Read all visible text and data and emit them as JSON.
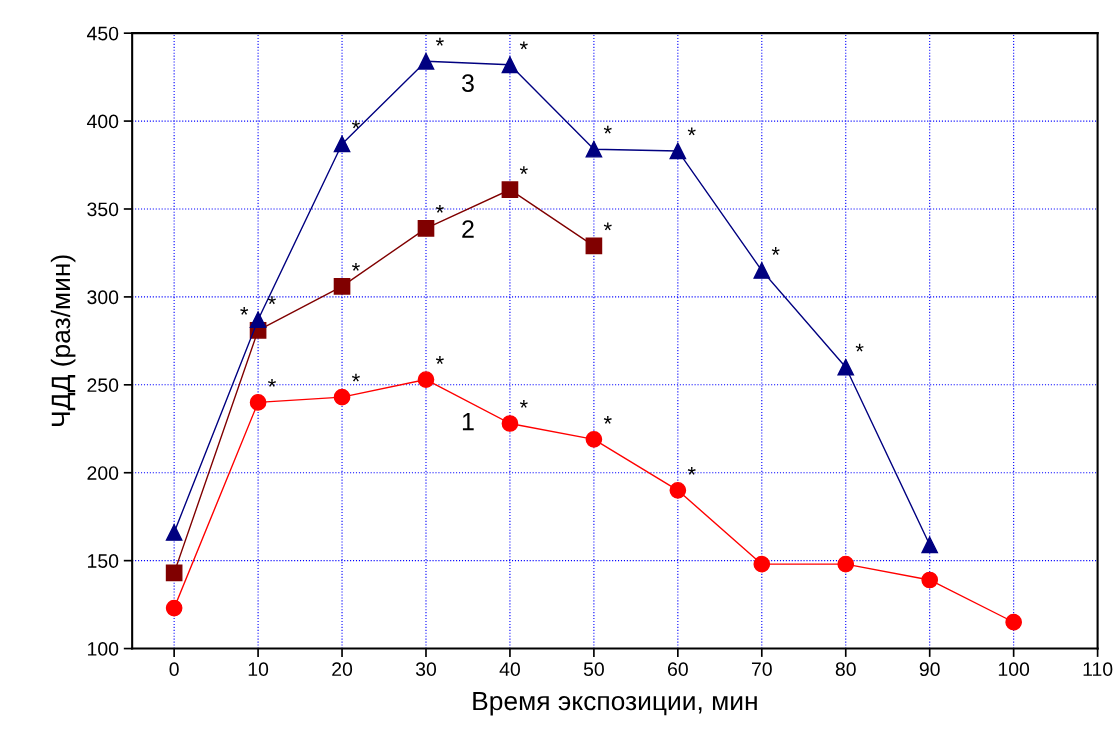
{
  "chart_data": {
    "type": "line",
    "xlabel": "Время экспозиции, мин",
    "ylabel": "ЧДД (раз/мин)",
    "xlim": [
      -5,
      110
    ],
    "ylim": [
      100,
      450
    ],
    "xticks": [
      0,
      10,
      20,
      30,
      40,
      50,
      60,
      70,
      80,
      90,
      100,
      110
    ],
    "yticks": [
      100,
      150,
      200,
      250,
      300,
      350,
      400,
      450
    ],
    "grid": true,
    "line_style": "solid",
    "series": [
      {
        "color": "#ff0000",
        "marker": "circle",
        "x": [
          0,
          10,
          20,
          30,
          40,
          50,
          60,
          70,
          80,
          90,
          100
        ],
        "values": [
          123,
          240,
          243,
          253,
          228,
          219,
          190,
          148,
          148,
          139,
          115
        ]
      },
      {
        "color": "#800000",
        "marker": "square",
        "x": [
          0,
          10,
          20,
          30,
          40,
          50
        ],
        "values": [
          143,
          281,
          306,
          339,
          361,
          329
        ]
      },
      {
        "color": "#000080",
        "marker": "triangle",
        "x": [
          0,
          10,
          20,
          30,
          40,
          50,
          60,
          70,
          80,
          90
        ],
        "values": [
          166,
          287,
          387,
          434,
          432,
          384,
          383,
          315,
          260,
          159
        ]
      }
    ],
    "annotations": [
      {
        "text": "1",
        "x": 30,
        "y": 253
      },
      {
        "text": "2",
        "x": 30,
        "y": 339
      },
      {
        "text": "3",
        "x": 30,
        "y": 434
      },
      {
        "text": "*",
        "x": 10,
        "y": 240
      },
      {
        "text": "*",
        "x": 20,
        "y": 243
      },
      {
        "text": "*",
        "x": 30,
        "y": 253
      },
      {
        "text": "*",
        "x": 40,
        "y": 228
      },
      {
        "text": "*",
        "x": 50,
        "y": 219
      },
      {
        "text": "*",
        "x": 60,
        "y": 190
      },
      {
        "text": "*",
        "x": 10,
        "y": 281
      },
      {
        "text": "*",
        "x": 20,
        "y": 306
      },
      {
        "text": "*",
        "x": 30,
        "y": 339
      },
      {
        "text": "*",
        "x": 40,
        "y": 361
      },
      {
        "text": "*",
        "x": 50,
        "y": 329
      },
      {
        "text": "*",
        "x": 10,
        "y": 287
      },
      {
        "text": "*",
        "x": 20,
        "y": 387
      },
      {
        "text": "*",
        "x": 30,
        "y": 434
      },
      {
        "text": "*",
        "x": 40,
        "y": 432
      },
      {
        "text": "*",
        "x": 50,
        "y": 384
      },
      {
        "text": "*",
        "x": 60,
        "y": 383
      },
      {
        "text": "*",
        "x": 70,
        "y": 315
      },
      {
        "text": "*",
        "x": 80,
        "y": 260
      }
    ]
  }
}
